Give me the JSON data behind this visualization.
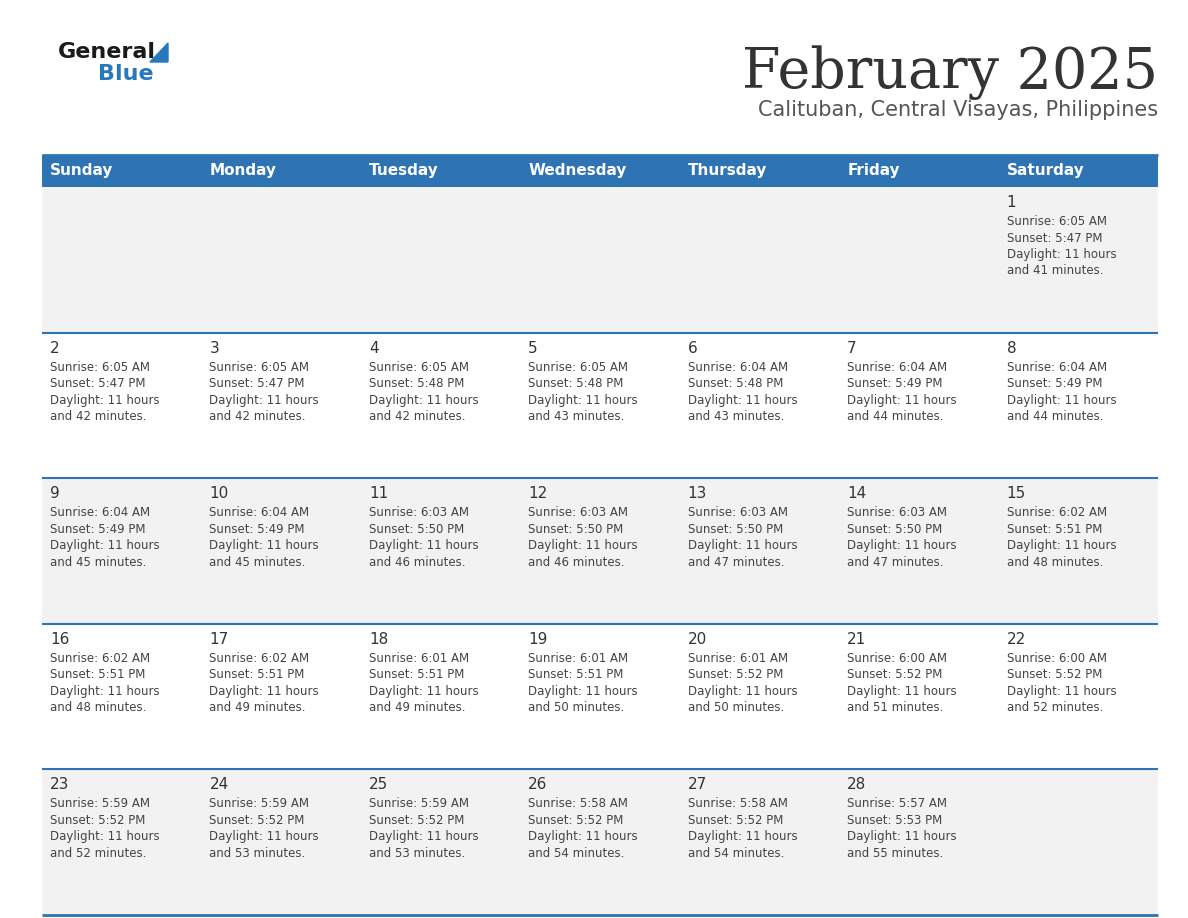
{
  "title": "February 2025",
  "subtitle": "Calituban, Central Visayas, Philippines",
  "days_of_week": [
    "Sunday",
    "Monday",
    "Tuesday",
    "Wednesday",
    "Thursday",
    "Friday",
    "Saturday"
  ],
  "header_bg": "#2E74B5",
  "header_text": "#FFFFFF",
  "cell_bg_gray": "#F2F2F2",
  "cell_bg_white": "#FFFFFF",
  "separator_color": "#2E74B5",
  "title_color": "#333333",
  "subtitle_color": "#555555",
  "day_number_color": "#333333",
  "cell_text_color": "#444444",
  "row_backgrounds": [
    "#F2F2F2",
    "#FFFFFF",
    "#F2F2F2",
    "#FFFFFF",
    "#F2F2F2"
  ],
  "calendar_data": [
    {
      "day": 1,
      "week": 0,
      "dow": 6,
      "sunrise": "6:05 AM",
      "sunset": "5:47 PM",
      "daylight": "11 hours and 41 minutes"
    },
    {
      "day": 2,
      "week": 1,
      "dow": 0,
      "sunrise": "6:05 AM",
      "sunset": "5:47 PM",
      "daylight": "11 hours and 42 minutes"
    },
    {
      "day": 3,
      "week": 1,
      "dow": 1,
      "sunrise": "6:05 AM",
      "sunset": "5:47 PM",
      "daylight": "11 hours and 42 minutes"
    },
    {
      "day": 4,
      "week": 1,
      "dow": 2,
      "sunrise": "6:05 AM",
      "sunset": "5:48 PM",
      "daylight": "11 hours and 42 minutes"
    },
    {
      "day": 5,
      "week": 1,
      "dow": 3,
      "sunrise": "6:05 AM",
      "sunset": "5:48 PM",
      "daylight": "11 hours and 43 minutes"
    },
    {
      "day": 6,
      "week": 1,
      "dow": 4,
      "sunrise": "6:04 AM",
      "sunset": "5:48 PM",
      "daylight": "11 hours and 43 minutes"
    },
    {
      "day": 7,
      "week": 1,
      "dow": 5,
      "sunrise": "6:04 AM",
      "sunset": "5:49 PM",
      "daylight": "11 hours and 44 minutes"
    },
    {
      "day": 8,
      "week": 1,
      "dow": 6,
      "sunrise": "6:04 AM",
      "sunset": "5:49 PM",
      "daylight": "11 hours and 44 minutes"
    },
    {
      "day": 9,
      "week": 2,
      "dow": 0,
      "sunrise": "6:04 AM",
      "sunset": "5:49 PM",
      "daylight": "11 hours and 45 minutes"
    },
    {
      "day": 10,
      "week": 2,
      "dow": 1,
      "sunrise": "6:04 AM",
      "sunset": "5:49 PM",
      "daylight": "11 hours and 45 minutes"
    },
    {
      "day": 11,
      "week": 2,
      "dow": 2,
      "sunrise": "6:03 AM",
      "sunset": "5:50 PM",
      "daylight": "11 hours and 46 minutes"
    },
    {
      "day": 12,
      "week": 2,
      "dow": 3,
      "sunrise": "6:03 AM",
      "sunset": "5:50 PM",
      "daylight": "11 hours and 46 minutes"
    },
    {
      "day": 13,
      "week": 2,
      "dow": 4,
      "sunrise": "6:03 AM",
      "sunset": "5:50 PM",
      "daylight": "11 hours and 47 minutes"
    },
    {
      "day": 14,
      "week": 2,
      "dow": 5,
      "sunrise": "6:03 AM",
      "sunset": "5:50 PM",
      "daylight": "11 hours and 47 minutes"
    },
    {
      "day": 15,
      "week": 2,
      "dow": 6,
      "sunrise": "6:02 AM",
      "sunset": "5:51 PM",
      "daylight": "11 hours and 48 minutes"
    },
    {
      "day": 16,
      "week": 3,
      "dow": 0,
      "sunrise": "6:02 AM",
      "sunset": "5:51 PM",
      "daylight": "11 hours and 48 minutes"
    },
    {
      "day": 17,
      "week": 3,
      "dow": 1,
      "sunrise": "6:02 AM",
      "sunset": "5:51 PM",
      "daylight": "11 hours and 49 minutes"
    },
    {
      "day": 18,
      "week": 3,
      "dow": 2,
      "sunrise": "6:01 AM",
      "sunset": "5:51 PM",
      "daylight": "11 hours and 49 minutes"
    },
    {
      "day": 19,
      "week": 3,
      "dow": 3,
      "sunrise": "6:01 AM",
      "sunset": "5:51 PM",
      "daylight": "11 hours and 50 minutes"
    },
    {
      "day": 20,
      "week": 3,
      "dow": 4,
      "sunrise": "6:01 AM",
      "sunset": "5:52 PM",
      "daylight": "11 hours and 50 minutes"
    },
    {
      "day": 21,
      "week": 3,
      "dow": 5,
      "sunrise": "6:00 AM",
      "sunset": "5:52 PM",
      "daylight": "11 hours and 51 minutes"
    },
    {
      "day": 22,
      "week": 3,
      "dow": 6,
      "sunrise": "6:00 AM",
      "sunset": "5:52 PM",
      "daylight": "11 hours and 52 minutes"
    },
    {
      "day": 23,
      "week": 4,
      "dow": 0,
      "sunrise": "5:59 AM",
      "sunset": "5:52 PM",
      "daylight": "11 hours and 52 minutes"
    },
    {
      "day": 24,
      "week": 4,
      "dow": 1,
      "sunrise": "5:59 AM",
      "sunset": "5:52 PM",
      "daylight": "11 hours and 53 minutes"
    },
    {
      "day": 25,
      "week": 4,
      "dow": 2,
      "sunrise": "5:59 AM",
      "sunset": "5:52 PM",
      "daylight": "11 hours and 53 minutes"
    },
    {
      "day": 26,
      "week": 4,
      "dow": 3,
      "sunrise": "5:58 AM",
      "sunset": "5:52 PM",
      "daylight": "11 hours and 54 minutes"
    },
    {
      "day": 27,
      "week": 4,
      "dow": 4,
      "sunrise": "5:58 AM",
      "sunset": "5:52 PM",
      "daylight": "11 hours and 54 minutes"
    },
    {
      "day": 28,
      "week": 4,
      "dow": 5,
      "sunrise": "5:57 AM",
      "sunset": "5:53 PM",
      "daylight": "11 hours and 55 minutes"
    }
  ],
  "num_weeks": 5,
  "logo_general_color": "#1a1a1a",
  "logo_blue_color": "#2779BD"
}
